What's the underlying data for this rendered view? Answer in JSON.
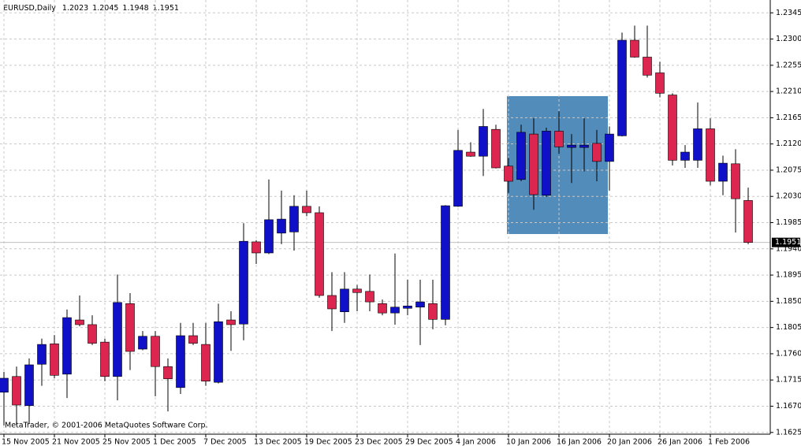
{
  "chart_data": {
    "type": "candlestick",
    "title": "EURUSD,Daily",
    "copyright": "MetaTrader, © 2001-2006 MetaQuotes Software Corp.",
    "categories": [
      "15 Nov 2005",
      null,
      null,
      null,
      "21 Nov 2005",
      null,
      null,
      null,
      "25 Nov 2005",
      null,
      null,
      null,
      "1 Dec 2005",
      null,
      null,
      null,
      "7 Dec 2005",
      null,
      null,
      null,
      "13 Dec 2005",
      null,
      null,
      null,
      "19 Dec 2005",
      null,
      null,
      null,
      "23 Dec 2005",
      null,
      null,
      null,
      "29 Dec 2005",
      null,
      null,
      null,
      "4 Jan 2006",
      null,
      null,
      null,
      "10 Jan 2006",
      null,
      null,
      null,
      "16 Jan 2006",
      null,
      null,
      null,
      "20 Jan 2006",
      null,
      null,
      null,
      "26 Jan 2006",
      null,
      null,
      null,
      "1 Feb 2006",
      null,
      null,
      null
    ],
    "open": [
      1.1694,
      1.1721,
      1.1671,
      1.1742,
      1.1777,
      1.1725,
      1.1818,
      1.181,
      1.178,
      1.1721,
      1.1846,
      1.1768,
      1.179,
      1.1738,
      1.1702,
      1.1791,
      1.1776,
      1.1711,
      1.1818,
      1.1811,
      1.1952,
      1.1933,
      1.1967,
      1.1969,
      1.2013,
      1.2002,
      1.186,
      1.1832,
      1.1871,
      1.1867,
      1.1846,
      1.183,
      1.1838,
      1.184,
      1.1846,
      1.1819,
      1.2013,
      1.2106,
      1.2099,
      1.2145,
      1.2082,
      1.2059,
      1.2137,
      1.2032,
      1.2142,
      1.2114,
      1.2114,
      1.2121,
      1.209,
      1.2134,
      1.2298,
      1.2269,
      1.2242,
      1.2204,
      1.2092,
      1.2092,
      1.2146,
      1.2056,
      1.2086,
      1.2023
    ],
    "high": [
      1.1729,
      1.1738,
      1.1752,
      1.1786,
      1.1792,
      1.1836,
      1.186,
      1.1826,
      1.1786,
      1.1896,
      1.1864,
      1.1799,
      1.1799,
      1.1752,
      1.1813,
      1.1813,
      1.1813,
      1.1846,
      1.1833,
      1.1984,
      1.1955,
      1.2059,
      1.204,
      1.2032,
      1.204,
      1.2013,
      1.19,
      1.19,
      1.1878,
      1.1896,
      1.1853,
      1.1932,
      1.1887,
      1.1887,
      1.1887,
      1.2015,
      1.2144,
      1.2123,
      1.218,
      1.2153,
      1.2096,
      1.2153,
      1.2164,
      1.2148,
      1.2176,
      1.2137,
      1.2164,
      1.2144,
      1.215,
      1.2311,
      1.2323,
      1.2323,
      1.2261,
      1.2207,
      1.2118,
      1.2191,
      1.2164,
      1.21,
      1.2111,
      1.2045
    ],
    "low": [
      1.1637,
      1.1637,
      1.164,
      1.1705,
      1.1718,
      1.1684,
      1.1807,
      1.1775,
      1.1713,
      1.168,
      1.1732,
      1.1766,
      1.1687,
      1.1661,
      1.1691,
      1.1775,
      1.1705,
      1.1709,
      1.1765,
      1.1783,
      1.1914,
      1.1931,
      1.1948,
      1.1937,
      1.1996,
      1.1856,
      1.1799,
      1.1813,
      1.1833,
      1.1833,
      1.1826,
      1.181,
      1.1826,
      1.1775,
      1.1802,
      1.1809,
      1.2012,
      1.2098,
      1.2065,
      1.2078,
      1.2036,
      1.2056,
      1.2007,
      1.2029,
      1.2103,
      1.2053,
      1.2073,
      1.2056,
      1.204,
      1.2133,
      1.2268,
      1.2234,
      1.22,
      1.2083,
      1.2079,
      1.2079,
      1.2049,
      1.2032,
      1.1968,
      1.1948
    ],
    "close": [
      1.1718,
      1.1672,
      1.1741,
      1.1776,
      1.1723,
      1.1822,
      1.181,
      1.1778,
      1.1721,
      1.1848,
      1.1764,
      1.179,
      1.1738,
      1.1717,
      1.1791,
      1.1778,
      1.1713,
      1.1815,
      1.181,
      1.1953,
      1.1933,
      1.199,
      1.1991,
      1.2013,
      1.2002,
      1.186,
      1.1837,
      1.1871,
      1.1865,
      1.1849,
      1.183,
      1.184,
      1.1842,
      1.1849,
      1.1819,
      1.2014,
      1.2109,
      1.2099,
      1.215,
      1.2079,
      1.2056,
      1.214,
      1.2033,
      1.2142,
      1.2115,
      1.2118,
      1.2118,
      1.209,
      1.2137,
      1.2298,
      1.2269,
      1.2238,
      1.2207,
      1.2092,
      1.2106,
      1.2146,
      1.2056,
      1.2087,
      1.2026,
      1.1951
    ],
    "up_color": "#1010c8",
    "down_color": "#dc2650",
    "current_price": 1.1951,
    "ylim": [
      1.1622,
      1.2367
    ],
    "yticks": [
      1.2345,
      {
        "value": 1.23,
        "label": "1.2300"
      },
      1.2255,
      {
        "value": 1.221,
        "label": "1.2210"
      },
      1.2165,
      {
        "value": 1.212,
        "label": "1.2120"
      },
      1.2075,
      {
        "value": 1.203,
        "label": "1.2030"
      },
      1.1985,
      {
        "value": 1.194,
        "label": "1.1940"
      },
      1.1895,
      {
        "value": 1.185,
        "label": "1.1850"
      },
      1.1805,
      {
        "value": 1.176,
        "label": "1.1760"
      },
      1.1715,
      {
        "value": 1.167,
        "label": "1.1670"
      },
      1.1625
    ],
    "grid": true
  }
}
